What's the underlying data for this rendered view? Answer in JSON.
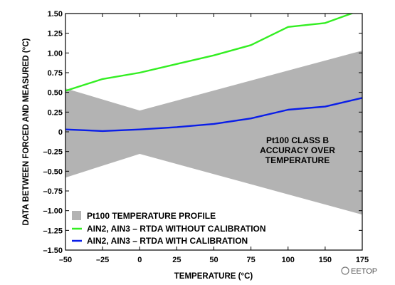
{
  "chart_data": {
    "type": "line",
    "xlabel": "TEMPERATURE (°C)",
    "ylabel": "DATA BETWEEN FORCED AND MEASURED (°C)",
    "x_ticks": [
      -50,
      -25,
      0,
      25,
      50,
      75,
      100,
      150,
      175
    ],
    "x_tick_labels": [
      "–50",
      "–25",
      "0",
      "25",
      "50",
      "75",
      "100",
      "150",
      "175"
    ],
    "y_ticks": [
      1.5,
      1.25,
      1.0,
      0.75,
      0.5,
      0.25,
      0,
      -0.25,
      -0.5,
      -0.75,
      -1.0,
      -1.25,
      -1.5
    ],
    "y_tick_labels": [
      "1.50",
      "1.25",
      "1.00",
      "0.75",
      "0.50",
      "0.25",
      "0",
      "–0.25",
      "–0.50",
      "–0.75",
      "–1.00",
      "–1.25",
      "–1.50"
    ],
    "ylim": [
      -1.5,
      1.5
    ],
    "grid": false,
    "legend_position": "bottom-left",
    "annotation": [
      "Pt100 CLASS B",
      "ACCURACY OVER",
      "TEMPERATURE"
    ],
    "series": [
      {
        "name": "Pt100 TEMPERATURE PROFILE",
        "kind": "band",
        "color": "#b3b3b3",
        "x": [
          -50,
          0,
          175
        ],
        "upper": [
          0.55,
          0.27,
          1.03
        ],
        "lower": [
          -0.58,
          -0.28,
          -1.05
        ]
      },
      {
        "name": "AIN2, AIN3 – RTDA WITHOUT CALIBRATION",
        "kind": "line",
        "color": "#33ee22",
        "x": [
          -50,
          -25,
          0,
          25,
          50,
          75,
          100,
          150,
          175
        ],
        "values": [
          0.52,
          0.67,
          0.75,
          0.86,
          0.97,
          1.1,
          1.33,
          1.38,
          1.55
        ]
      },
      {
        "name": "AIN2, AIN3 – RTDA WITH CALIBRATION",
        "kind": "line",
        "color": "#0a1ee8",
        "x": [
          -50,
          -25,
          0,
          25,
          50,
          75,
          100,
          150,
          175
        ],
        "values": [
          0.03,
          0.01,
          0.03,
          0.06,
          0.1,
          0.17,
          0.28,
          0.32,
          0.43
        ]
      }
    ]
  },
  "watermark": {
    "text": "EETOP"
  }
}
